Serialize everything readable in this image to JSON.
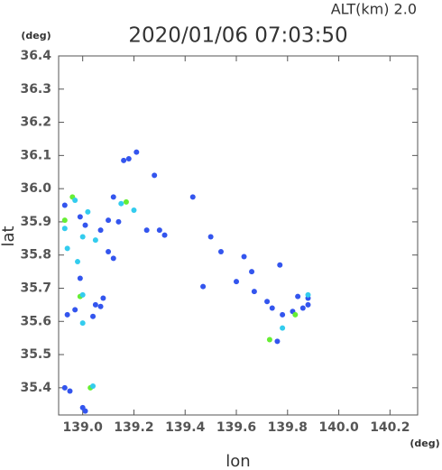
{
  "chart_data": {
    "type": "scatter",
    "title": "2020/01/06 07:03:50",
    "subtitle": "ALT(km)  2.0",
    "x_label": "lon",
    "y_label": "lat",
    "x_unit": "(deg)",
    "y_unit": "(deg)",
    "xlim": [
      138.906,
      140.308
    ],
    "ylim": [
      35.318,
      36.4
    ],
    "xticks": [
      {
        "value": 139,
        "label": "139.0"
      },
      139.2,
      139.4,
      139.6,
      139.8,
      {
        "value": 140,
        "label": "140.0"
      },
      140.2
    ],
    "yticks": [
      35.4,
      35.5,
      35.6,
      35.7,
      35.8,
      35.9,
      {
        "value": 36,
        "label": "36.0"
      },
      36.1,
      36.2,
      36.3,
      36.4
    ],
    "x": [
      139.18,
      139.16,
      139.21,
      139.28,
      139.43,
      138.96,
      138.97,
      138.93,
      139.12,
      139.17,
      139.15,
      139.2,
      139.02,
      138.99,
      138.93,
      138.93,
      139.1,
      139.14,
      139.01,
      139.07,
      139.25,
      139.3,
      139.32,
      139.5,
      139.0,
      139.05,
      138.94,
      138.98,
      139.1,
      139.12,
      139.63,
      139.77,
      139.54,
      139.66,
      139.6,
      138.99,
      139.47,
      138.99,
      139.0,
      139.08,
      139.07,
      139.05,
      138.97,
      138.94,
      139.0,
      139.04,
      139.67,
      139.72,
      139.74,
      139.78,
      139.82,
      139.83,
      139.86,
      139.88,
      139.84,
      139.88,
      139.88,
      139.73,
      139.76,
      139.78,
      138.93,
      138.95,
      139.03,
      139.04,
      139.01,
      139.0
    ],
    "values": [
      36.09,
      36.085,
      36.11,
      36.04,
      35.975,
      35.975,
      35.965,
      35.95,
      35.975,
      35.96,
      35.955,
      35.935,
      35.93,
      35.915,
      35.905,
      35.88,
      35.905,
      35.9,
      35.89,
      35.875,
      35.875,
      35.875,
      35.86,
      35.855,
      35.855,
      35.845,
      35.82,
      35.78,
      35.81,
      35.79,
      35.795,
      35.77,
      35.81,
      35.75,
      35.72,
      35.73,
      35.705,
      35.675,
      35.68,
      35.67,
      35.645,
      35.65,
      35.635,
      35.62,
      35.595,
      35.615,
      35.69,
      35.66,
      35.64,
      35.62,
      35.63,
      35.62,
      35.64,
      35.67,
      35.675,
      35.68,
      35.65,
      35.545,
      35.54,
      35.58,
      35.4,
      35.39,
      35.4,
      35.405,
      35.33,
      35.34
    ],
    "colors": [
      "#3355ee",
      "#3355ee",
      "#3355ee",
      "#3355ee",
      "#3355ee",
      "#66ee33",
      "#33ccee",
      "#3355ee",
      "#3355ee",
      "#66ee33",
      "#33ccee",
      "#33ccee",
      "#33ccee",
      "#3355ee",
      "#66ee33",
      "#33ccee",
      "#3355ee",
      "#3355ee",
      "#3355ee",
      "#3355ee",
      "#3355ee",
      "#3355ee",
      "#3355ee",
      "#3355ee",
      "#33ccee",
      "#33ccee",
      "#33ccee",
      "#33ccee",
      "#3355ee",
      "#3355ee",
      "#3355ee",
      "#3355ee",
      "#3355ee",
      "#3355ee",
      "#3355ee",
      "#3355ee",
      "#3355ee",
      "#66ee33",
      "#33ccee",
      "#3355ee",
      "#3355ee",
      "#3355ee",
      "#3355ee",
      "#3355ee",
      "#33ccee",
      "#3355ee",
      "#3355ee",
      "#3355ee",
      "#3355ee",
      "#3355ee",
      "#3355ee",
      "#66ee33",
      "#3355ee",
      "#3355ee",
      "#3355ee",
      "#33ccee",
      "#3355ee",
      "#66ee33",
      "#3355ee",
      "#33ccee",
      "#3355ee",
      "#3355ee",
      "#66ee33",
      "#33ccee",
      "#3355ee",
      "#3355ee"
    ]
  }
}
